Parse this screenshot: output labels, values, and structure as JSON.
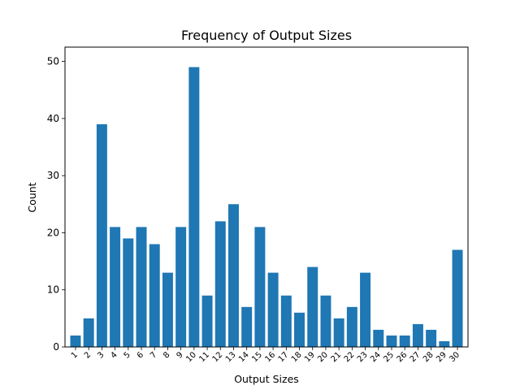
{
  "chart_data": {
    "type": "bar",
    "title": "Frequency of Output Sizes",
    "xlabel": "Output Sizes",
    "ylabel": "Count",
    "categories": [
      "1",
      "2",
      "3",
      "4",
      "5",
      "6",
      "7",
      "8",
      "9",
      "10",
      "11",
      "12",
      "13",
      "14",
      "15",
      "16",
      "17",
      "18",
      "19",
      "20",
      "21",
      "22",
      "23",
      "24",
      "25",
      "26",
      "27",
      "28",
      "29",
      "30"
    ],
    "values": [
      2,
      5,
      39,
      21,
      19,
      21,
      18,
      13,
      21,
      49,
      9,
      22,
      25,
      7,
      21,
      13,
      9,
      6,
      14,
      9,
      5,
      7,
      13,
      3,
      2,
      2,
      4,
      3,
      1,
      17
    ],
    "ylim": [
      0,
      52.5
    ],
    "yticks": [
      0,
      10,
      20,
      30,
      40,
      50
    ],
    "bar_color": "#1f77b4",
    "grid": false,
    "xtick_rotation": 45
  }
}
